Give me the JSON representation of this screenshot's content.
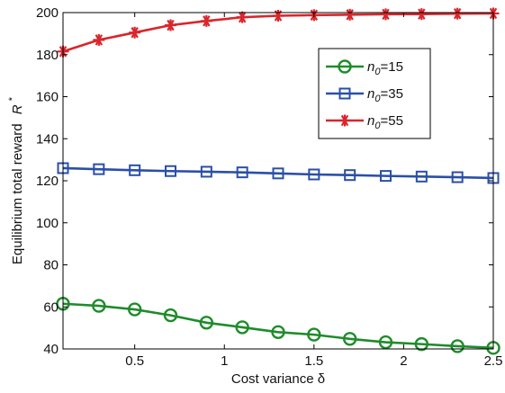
{
  "chart_data": {
    "type": "line",
    "xlabel": "Cost variance δ",
    "ylabel_main": "Equilibrium total reward",
    "ylabel_symbol": "R",
    "ylabel_superscript": "*",
    "xlim": [
      0.1,
      2.5
    ],
    "ylim": [
      40,
      200
    ],
    "xticks": [
      0.5,
      1,
      1.5,
      2,
      2.5
    ],
    "xtick_labels": [
      "0.5",
      "1",
      "1.5",
      "2",
      "2.5"
    ],
    "yticks": [
      40,
      60,
      80,
      100,
      120,
      140,
      160,
      180,
      200
    ],
    "ytick_labels": [
      "40",
      "60",
      "80",
      "100",
      "120",
      "140",
      "160",
      "180",
      "200"
    ],
    "grid": false,
    "legend_position": "top-right",
    "x": [
      0.1,
      0.3,
      0.5,
      0.7,
      0.9,
      1.1,
      1.3,
      1.5,
      1.7,
      1.9,
      2.1,
      2.3,
      2.5
    ],
    "series": [
      {
        "name": "n0=15",
        "legend_base": "n",
        "legend_sub": "0",
        "legend_value": "=15",
        "marker": "circle",
        "color": "#1e8c2a",
        "values": [
          61.5,
          60.5,
          58.8,
          56.0,
          52.5,
          50.3,
          48.0,
          46.8,
          44.8,
          43.2,
          42.3,
          41.3,
          40.5
        ]
      },
      {
        "name": "n0=35",
        "legend_base": "n",
        "legend_sub": "0",
        "legend_value": "=35",
        "marker": "square",
        "color": "#2a4fa8",
        "values": [
          126.0,
          125.5,
          125.0,
          124.6,
          124.3,
          124.0,
          123.5,
          123.0,
          122.7,
          122.3,
          122.0,
          121.7,
          121.3
        ]
      },
      {
        "name": "n0=55",
        "legend_base": "n",
        "legend_sub": "0",
        "legend_value": "=55",
        "marker": "asterisk",
        "color": "#d9262c",
        "values": [
          181.5,
          187.0,
          190.5,
          194.0,
          196.0,
          197.8,
          198.5,
          198.8,
          199.0,
          199.2,
          199.3,
          199.5,
          199.6
        ]
      }
    ]
  }
}
